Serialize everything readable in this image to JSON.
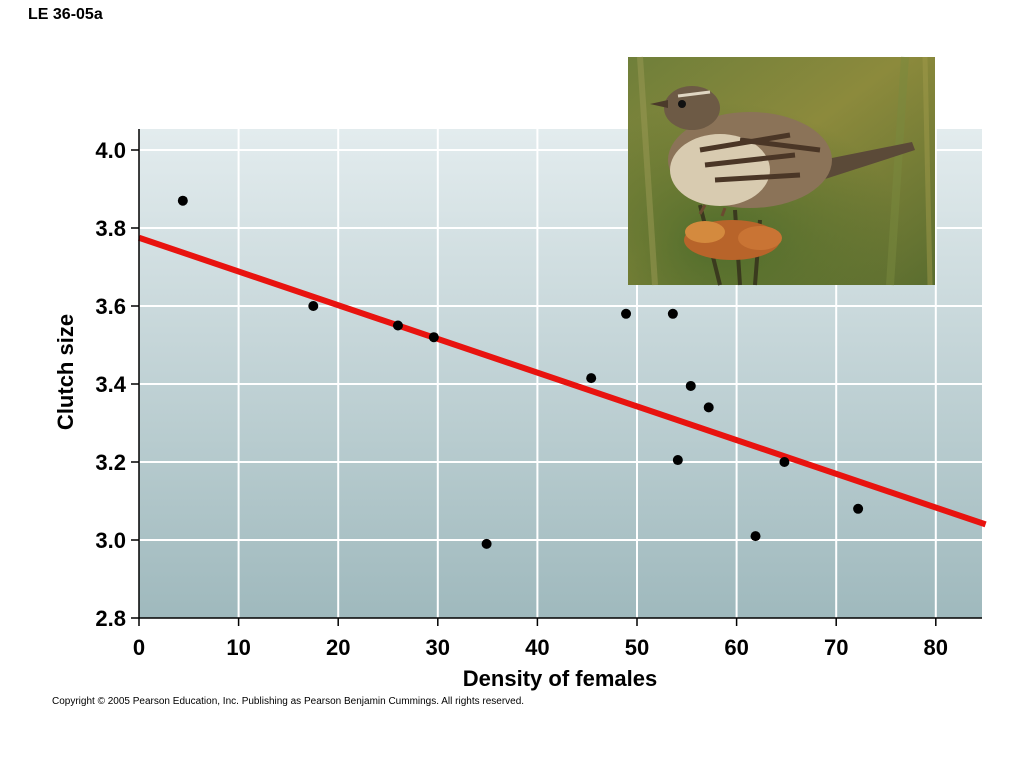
{
  "slide_label": "LE 36-05a",
  "copyright": "Copyright © 2005 Pearson Education, Inc. Publishing as Pearson Benjamin Cummings. All rights reserved.",
  "photo": {
    "subject": "song sparrow perched on dried flower head",
    "icon": "bird-photo"
  },
  "colors": {
    "background_top": "#e3ecee",
    "background_bottom": "#9fb9bd",
    "gridline": "#ffffff",
    "trendline": "#e8130f",
    "points": "#000000"
  },
  "chart_data": {
    "type": "scatter",
    "title": "",
    "xlabel": "Density of females",
    "ylabel": "Clutch size",
    "xlim": [
      0,
      85
    ],
    "ylim": [
      2.8,
      4.05
    ],
    "x_ticks": [
      0,
      10,
      20,
      30,
      40,
      50,
      60,
      70,
      80
    ],
    "x_tick_labels": [
      "0",
      "10",
      "20",
      "30",
      "40",
      "50",
      "60",
      "70",
      "80"
    ],
    "y_ticks": [
      2.8,
      3.0,
      3.2,
      3.4,
      3.6,
      3.8,
      4.0
    ],
    "y_tick_labels": [
      "2.8",
      "3.0",
      "3.2",
      "3.4",
      "3.6",
      "3.8",
      "4.0"
    ],
    "grid": true,
    "points": [
      {
        "x": 4.4,
        "y": 3.87
      },
      {
        "x": 17.5,
        "y": 3.6
      },
      {
        "x": 26.0,
        "y": 3.55
      },
      {
        "x": 29.6,
        "y": 3.52
      },
      {
        "x": 34.9,
        "y": 2.99
      },
      {
        "x": 45.4,
        "y": 3.415
      },
      {
        "x": 48.9,
        "y": 3.58
      },
      {
        "x": 53.6,
        "y": 3.58
      },
      {
        "x": 54.1,
        "y": 3.205
      },
      {
        "x": 55.4,
        "y": 3.395
      },
      {
        "x": 57.2,
        "y": 3.34
      },
      {
        "x": 61.9,
        "y": 3.01
      },
      {
        "x": 64.8,
        "y": 3.2
      },
      {
        "x": 72.2,
        "y": 3.08
      }
    ],
    "trendline": {
      "x": [
        0,
        85
      ],
      "y": [
        3.775,
        3.04
      ]
    }
  }
}
